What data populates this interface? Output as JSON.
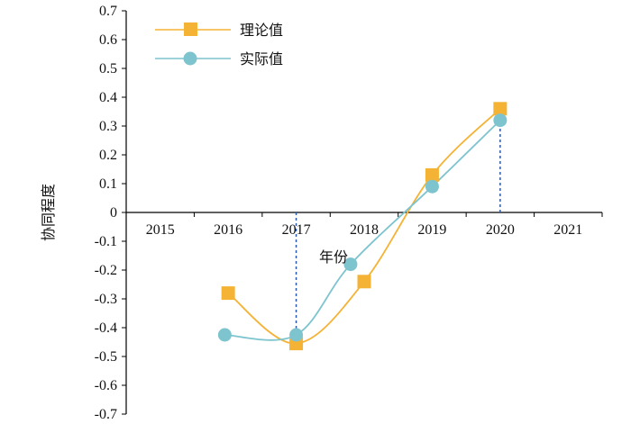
{
  "chart_data": {
    "type": "line",
    "title": "",
    "xlabel": "年份",
    "ylabel": "协同程度",
    "x": [
      2015,
      2016,
      2017,
      2018,
      2019,
      2020,
      2021
    ],
    "x_tick_labels": [
      "2015",
      "2016",
      "2017",
      "2018",
      "2019",
      "2020",
      "2021"
    ],
    "y_tick_labels": [
      "0.7",
      "0.6",
      "0.5",
      "0.4",
      "0.3",
      "0.2",
      "0.1",
      "0",
      "-0.1",
      "-0.2",
      "-0.3",
      "-0.4",
      "-0.5",
      "-0.6",
      "-0.7"
    ],
    "ylim": [
      -0.7,
      0.7
    ],
    "xlim": [
      2014.5,
      2021.5
    ],
    "grid": false,
    "legend_position": "top-left",
    "series": [
      {
        "name": "理论值",
        "marker": "square",
        "color": "#F5B335",
        "points": [
          [
            2016,
            -0.28
          ],
          [
            2017,
            -0.455
          ],
          [
            2018,
            -0.24
          ],
          [
            2019,
            0.13
          ],
          [
            2020,
            0.36
          ]
        ]
      },
      {
        "name": "实际值",
        "marker": "circle",
        "color": "#7EC4CF",
        "points": [
          [
            2015.95,
            -0.425
          ],
          [
            2017,
            -0.425
          ],
          [
            2017.8,
            -0.18
          ],
          [
            2019,
            0.09
          ],
          [
            2020,
            0.32
          ]
        ]
      }
    ],
    "dashed_reference_x": [
      2017,
      2020
    ],
    "dashed_color": "#2E5AA7"
  }
}
